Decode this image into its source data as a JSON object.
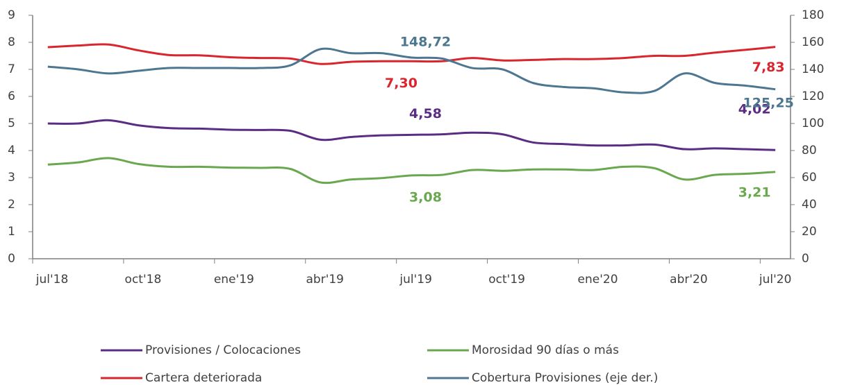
{
  "chart_data": {
    "type": "line",
    "categories": [
      "jul'18",
      null,
      null,
      "oct'18",
      null,
      null,
      "ene'19",
      null,
      null,
      "abr'19",
      null,
      null,
      "jul'19",
      null,
      null,
      "oct'19",
      null,
      null,
      "ene'20",
      null,
      null,
      "abr'20",
      null,
      null,
      "jul'20"
    ],
    "series": [
      {
        "name": "Provisiones / Colocaciones",
        "color": "#5b2c83",
        "axis": "y",
        "values": [
          5.0,
          5.0,
          5.12,
          4.93,
          4.83,
          4.81,
          4.77,
          4.76,
          4.73,
          4.4,
          4.5,
          4.56,
          4.58,
          4.6,
          4.66,
          4.6,
          4.3,
          4.24,
          4.19,
          4.19,
          4.22,
          4.05,
          4.08,
          4.05,
          4.02
        ],
        "value_labels": [
          null,
          null,
          null,
          null,
          null,
          null,
          null,
          null,
          null,
          null,
          null,
          null,
          "4,58",
          null,
          null,
          null,
          null,
          null,
          null,
          null,
          null,
          null,
          null,
          null,
          "4,02"
        ]
      },
      {
        "name": "Morosidad 90 días o más",
        "color": "#6aa84f",
        "axis": "y",
        "values": [
          3.48,
          3.56,
          3.72,
          3.5,
          3.4,
          3.4,
          3.37,
          3.36,
          3.32,
          2.82,
          2.93,
          2.98,
          3.08,
          3.1,
          3.28,
          3.25,
          3.3,
          3.3,
          3.28,
          3.4,
          3.35,
          2.93,
          3.1,
          3.14,
          3.21
        ],
        "value_labels": [
          null,
          null,
          null,
          null,
          null,
          null,
          null,
          null,
          null,
          null,
          null,
          null,
          "3,08",
          null,
          null,
          null,
          null,
          null,
          null,
          null,
          null,
          null,
          null,
          null,
          "3,21"
        ]
      },
      {
        "name": "Cartera deteriorada",
        "color": "#d9262e",
        "axis": "y",
        "values": [
          7.82,
          7.88,
          7.92,
          7.7,
          7.53,
          7.52,
          7.45,
          7.42,
          7.4,
          7.2,
          7.28,
          7.3,
          7.3,
          7.3,
          7.42,
          7.33,
          7.35,
          7.38,
          7.38,
          7.42,
          7.5,
          7.5,
          7.62,
          7.72,
          7.83
        ],
        "value_labels": [
          null,
          null,
          null,
          null,
          null,
          null,
          null,
          null,
          null,
          null,
          null,
          null,
          "7,30",
          null,
          null,
          null,
          null,
          null,
          null,
          null,
          null,
          null,
          null,
          null,
          "7,83"
        ]
      },
      {
        "name": "Cobertura Provisiones (eje der.)",
        "color": "#4d7690",
        "axis": "y2",
        "values": [
          142,
          140,
          137,
          139,
          141,
          141,
          141,
          141,
          143,
          155,
          152,
          152,
          148.72,
          148,
          141,
          140,
          130,
          127,
          126,
          123,
          124,
          137,
          130,
          128,
          125.25
        ],
        "value_labels": [
          null,
          null,
          null,
          null,
          null,
          null,
          null,
          null,
          null,
          null,
          null,
          null,
          "148,72",
          null,
          null,
          null,
          null,
          null,
          null,
          null,
          null,
          null,
          null,
          null,
          "125,25"
        ]
      }
    ],
    "ylim": [
      0,
      9
    ],
    "yticks": [
      0,
      1,
      2,
      3,
      4,
      5,
      6,
      7,
      8,
      9
    ],
    "y2lim": [
      0,
      180
    ],
    "y2ticks": [
      0,
      20,
      40,
      60,
      80,
      100,
      120,
      140,
      160,
      180
    ],
    "legend": "bottom"
  }
}
